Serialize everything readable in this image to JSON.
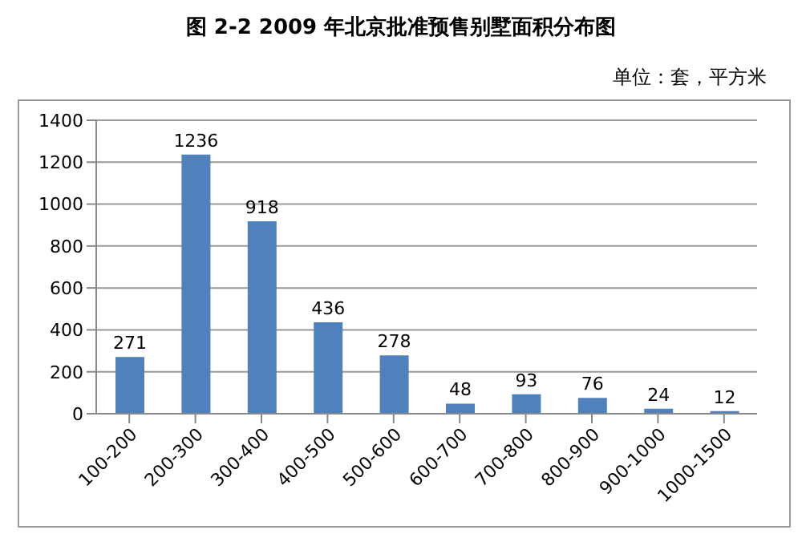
{
  "chart_data": {
    "type": "bar",
    "title": "图 2-2   2009 年北京批准预售别墅面积分布图",
    "subtitle": "单位：套，平方米",
    "categories": [
      "100-200",
      "200-300",
      "300-400",
      "400-500",
      "500-600",
      "600-700",
      "700-800",
      "800-900",
      "900-1000",
      "1000-1500"
    ],
    "values": [
      271,
      1236,
      918,
      436,
      278,
      48,
      93,
      76,
      24,
      12
    ],
    "color": "#4f81bd",
    "ylim": [
      0,
      1400
    ],
    "yticks": [
      0,
      200,
      400,
      600,
      800,
      1000,
      1200,
      1400
    ],
    "grid": "y",
    "data_labels": true,
    "legend": false
  }
}
